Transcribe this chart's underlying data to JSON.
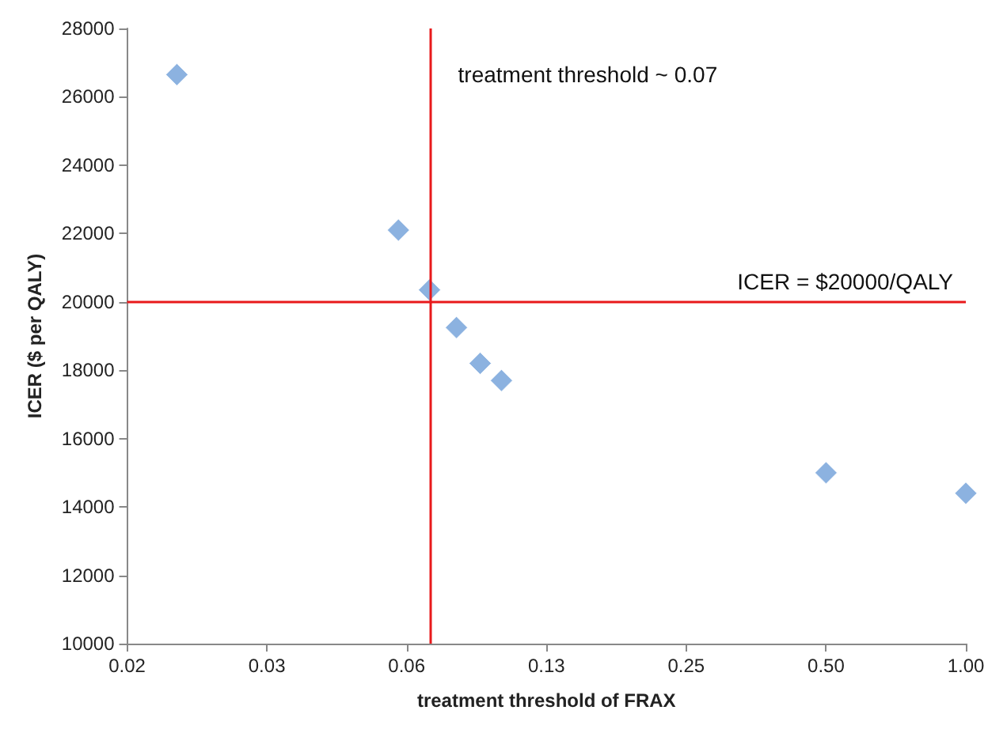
{
  "chart_data": {
    "type": "scatter",
    "xlabel": "treatment threshold of FRAX",
    "ylabel": "ICER ($ per QALY)",
    "x": [
      0.02,
      0.06,
      0.07,
      0.08,
      0.09,
      0.1,
      0.5,
      1.0
    ],
    "values": [
      26650,
      22100,
      20350,
      19250,
      18200,
      17700,
      15000,
      14400
    ],
    "color": "#6f9fd8",
    "marker": "diamond",
    "log": "x",
    "grid": false,
    "xlim": [
      0.015625,
      1
    ],
    "xticks": [
      {
        "value": 0.015625,
        "label": "0.02"
      },
      {
        "value": 0.03125,
        "label": "0.03"
      },
      {
        "value": 0.0625,
        "label": "0.06"
      },
      {
        "value": 0.125,
        "label": "0.13"
      },
      {
        "value": 0.25,
        "label": "0.25"
      },
      {
        "value": 0.5,
        "label": "0.50"
      },
      {
        "value": 1,
        "label": "1.00"
      }
    ],
    "ylim": [
      10000,
      28000
    ],
    "yticks": [
      10000,
      12000,
      14000,
      16000,
      18000,
      20000,
      22000,
      24000,
      26000,
      28000
    ],
    "ref_lines": [
      {
        "axis": "x",
        "value": 0.07,
        "label": "treatment threshold ~ 0.07",
        "color": "#e8191b"
      },
      {
        "axis": "y",
        "value": 20000,
        "label": "ICER = $20000/QALY",
        "color": "#e8191b"
      }
    ]
  }
}
